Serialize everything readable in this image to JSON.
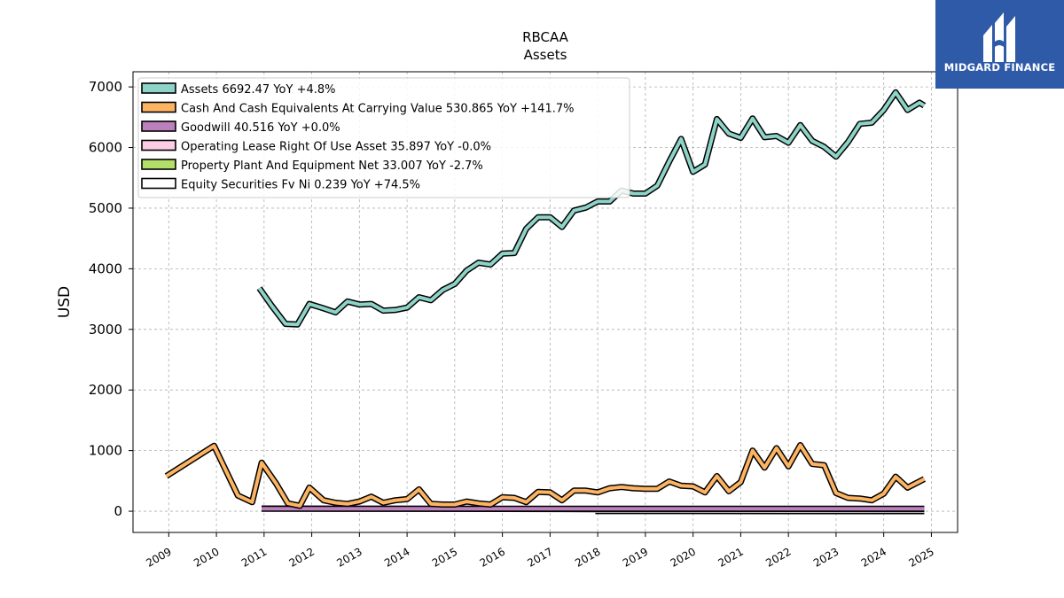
{
  "brand": {
    "name": "MIDGARD FINANCE",
    "logo_icon": "midgard-monogram-icon",
    "background_color": "#2f5aa8"
  },
  "chart_data": {
    "type": "line",
    "title": "RBCAA",
    "subtitle": "Assets",
    "ylabel": "USD",
    "xlabel": "",
    "ylim": [
      -350,
      7250
    ],
    "xlim": [
      2008.25,
      2025.55
    ],
    "yticks": [
      0,
      1000,
      2000,
      3000,
      4000,
      5000,
      6000,
      7000
    ],
    "xticks": [
      "2009",
      "2010",
      "2011",
      "2012",
      "2013",
      "2014",
      "2015",
      "2016",
      "2017",
      "2018",
      "2019",
      "2020",
      "2021",
      "2022",
      "2023",
      "2024",
      "2025"
    ],
    "grid": true,
    "legend_position": "top-left",
    "series": [
      {
        "name": "Assets",
        "legend_label": "Assets  6692.47 YoY +4.8%",
        "color": "#8dd3c7",
        "points": [
          [
            2010.9,
            3680
          ],
          [
            2011.15,
            3400
          ],
          [
            2011.45,
            3090
          ],
          [
            2011.7,
            3080
          ],
          [
            2011.95,
            3420
          ],
          [
            2012.2,
            3360
          ],
          [
            2012.5,
            3280
          ],
          [
            2012.75,
            3460
          ],
          [
            2013.0,
            3410
          ],
          [
            2013.25,
            3420
          ],
          [
            2013.5,
            3310
          ],
          [
            2013.75,
            3320
          ],
          [
            2014.0,
            3360
          ],
          [
            2014.25,
            3530
          ],
          [
            2014.5,
            3480
          ],
          [
            2014.75,
            3650
          ],
          [
            2015.0,
            3750
          ],
          [
            2015.25,
            3970
          ],
          [
            2015.5,
            4100
          ],
          [
            2015.75,
            4070
          ],
          [
            2016.0,
            4250
          ],
          [
            2016.25,
            4260
          ],
          [
            2016.5,
            4660
          ],
          [
            2016.75,
            4850
          ],
          [
            2017.0,
            4850
          ],
          [
            2017.25,
            4690
          ],
          [
            2017.5,
            4960
          ],
          [
            2017.75,
            5010
          ],
          [
            2018.0,
            5110
          ],
          [
            2018.25,
            5110
          ],
          [
            2018.5,
            5290
          ],
          [
            2018.75,
            5240
          ],
          [
            2019.0,
            5240
          ],
          [
            2019.25,
            5370
          ],
          [
            2019.5,
            5770
          ],
          [
            2019.75,
            6140
          ],
          [
            2020.0,
            5600
          ],
          [
            2020.25,
            5720
          ],
          [
            2020.5,
            6470
          ],
          [
            2020.75,
            6230
          ],
          [
            2021.0,
            6160
          ],
          [
            2021.25,
            6480
          ],
          [
            2021.5,
            6170
          ],
          [
            2021.75,
            6190
          ],
          [
            2022.0,
            6080
          ],
          [
            2022.25,
            6370
          ],
          [
            2022.5,
            6110
          ],
          [
            2022.75,
            6010
          ],
          [
            2023.0,
            5850
          ],
          [
            2023.25,
            6090
          ],
          [
            2023.5,
            6390
          ],
          [
            2023.75,
            6410
          ],
          [
            2024.0,
            6620
          ],
          [
            2024.25,
            6910
          ],
          [
            2024.5,
            6620
          ],
          [
            2024.75,
            6740
          ],
          [
            2024.85,
            6692
          ]
        ]
      },
      {
        "name": "Cash And Cash Equivalents At Carrying Value",
        "legend_label": "Cash And Cash Equivalents At Carrying Value  530.865 YoY +141.7%",
        "color": "#fdb462",
        "points": [
          [
            2008.95,
            580
          ],
          [
            2009.95,
            1080
          ],
          [
            2010.45,
            260
          ],
          [
            2010.75,
            150
          ],
          [
            2010.95,
            800
          ],
          [
            2011.25,
            460
          ],
          [
            2011.5,
            130
          ],
          [
            2011.75,
            90
          ],
          [
            2011.95,
            390
          ],
          [
            2012.25,
            180
          ],
          [
            2012.5,
            140
          ],
          [
            2012.75,
            120
          ],
          [
            2013.0,
            160
          ],
          [
            2013.25,
            240
          ],
          [
            2013.5,
            140
          ],
          [
            2013.75,
            180
          ],
          [
            2014.0,
            200
          ],
          [
            2014.25,
            360
          ],
          [
            2014.5,
            120
          ],
          [
            2014.75,
            110
          ],
          [
            2015.0,
            110
          ],
          [
            2015.25,
            160
          ],
          [
            2015.5,
            130
          ],
          [
            2015.75,
            110
          ],
          [
            2016.0,
            230
          ],
          [
            2016.25,
            220
          ],
          [
            2016.5,
            150
          ],
          [
            2016.75,
            320
          ],
          [
            2017.0,
            310
          ],
          [
            2017.25,
            180
          ],
          [
            2017.5,
            340
          ],
          [
            2017.75,
            340
          ],
          [
            2018.0,
            310
          ],
          [
            2018.25,
            380
          ],
          [
            2018.5,
            400
          ],
          [
            2018.75,
            380
          ],
          [
            2019.0,
            370
          ],
          [
            2019.25,
            370
          ],
          [
            2019.5,
            490
          ],
          [
            2019.75,
            420
          ],
          [
            2020.0,
            410
          ],
          [
            2020.25,
            310
          ],
          [
            2020.5,
            580
          ],
          [
            2020.75,
            330
          ],
          [
            2021.0,
            480
          ],
          [
            2021.25,
            1000
          ],
          [
            2021.5,
            720
          ],
          [
            2021.75,
            1040
          ],
          [
            2022.0,
            740
          ],
          [
            2022.25,
            1090
          ],
          [
            2022.5,
            780
          ],
          [
            2022.75,
            760
          ],
          [
            2023.0,
            300
          ],
          [
            2023.25,
            220
          ],
          [
            2023.5,
            210
          ],
          [
            2023.75,
            180
          ],
          [
            2024.0,
            290
          ],
          [
            2024.25,
            570
          ],
          [
            2024.5,
            390
          ],
          [
            2024.85,
            531
          ]
        ]
      },
      {
        "name": "Goodwill",
        "legend_label": "Goodwill  40.516 YoY +0.0%",
        "color": "#bc80bd",
        "points": [
          [
            2010.95,
            40
          ],
          [
            2024.85,
            40.5
          ]
        ]
      },
      {
        "name": "Operating Lease Right Of Use Asset",
        "legend_label": "Operating Lease Right Of Use Asset  35.897 YoY -0.0%",
        "color": "#fccde5",
        "points": [
          [
            2018.95,
            38
          ],
          [
            2024.85,
            35.9
          ]
        ]
      },
      {
        "name": "Property Plant And Equipment Net",
        "legend_label": "Property Plant And Equipment Net  33.007 YoY -2.7%",
        "color": "#b3de69",
        "points": [
          [
            2010.95,
            45
          ],
          [
            2013.0,
            40
          ],
          [
            2016.0,
            38
          ],
          [
            2017.9,
            34
          ],
          [
            2024.85,
            33
          ]
        ]
      },
      {
        "name": "Equity Securities Fv Ni",
        "legend_label": "Equity Securities Fv Ni  0.239 YoY +74.5%",
        "color": "#ffffff",
        "points": [
          [
            2017.95,
            2
          ],
          [
            2024.85,
            0.24
          ]
        ]
      }
    ]
  }
}
